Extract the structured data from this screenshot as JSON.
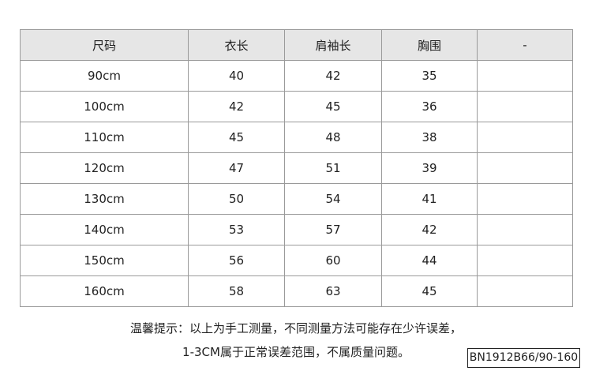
{
  "table": {
    "header": [
      "尺码",
      "衣长",
      "肩袖长",
      "胸围",
      "-"
    ],
    "rows": [
      [
        "90cm",
        40,
        42,
        35
      ],
      [
        "100cm",
        42,
        45,
        36
      ],
      [
        "110cm",
        45,
        48,
        38
      ],
      [
        "120cm",
        47,
        51,
        39
      ],
      [
        "130cm",
        50,
        54,
        41
      ],
      [
        "140cm",
        53,
        57,
        42
      ],
      [
        "150cm",
        56,
        60,
        44
      ],
      [
        "160cm",
        58,
        63,
        45
      ]
    ]
  },
  "notes": [
    "温馨提示：以上为手工测量，不同测量方法可能存在少许误差，",
    "1-3CM属于正常误差范围，不属质量问题。"
  ],
  "code": "BN1912B66/90-160"
}
